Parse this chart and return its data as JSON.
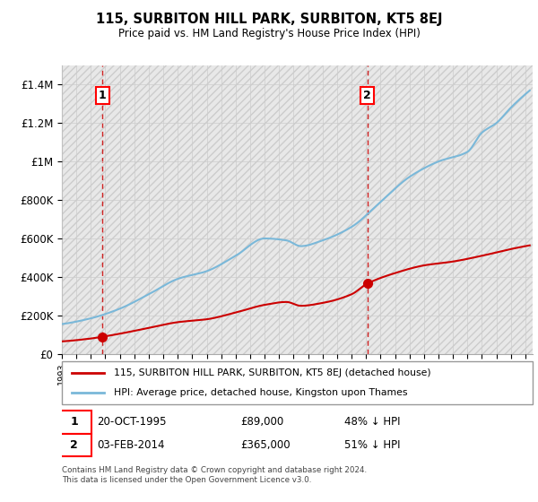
{
  "title": "115, SURBITON HILL PARK, SURBITON, KT5 8EJ",
  "subtitle": "Price paid vs. HM Land Registry's House Price Index (HPI)",
  "ylabel_ticks": [
    "£0",
    "£200K",
    "£400K",
    "£600K",
    "£800K",
    "£1M",
    "£1.2M",
    "£1.4M"
  ],
  "ylim": [
    0,
    1500000
  ],
  "xlim_start": 1993.0,
  "xlim_end": 2025.5,
  "hpi_color": "#7ab8d9",
  "price_color": "#cc0000",
  "marker1_x": 1995.8,
  "marker1_y": 89000,
  "marker2_x": 2014.08,
  "marker2_y": 365000,
  "legend_line1": "115, SURBITON HILL PARK, SURBITON, KT5 8EJ (detached house)",
  "legend_line2": "HPI: Average price, detached house, Kingston upon Thames",
  "footer": "Contains HM Land Registry data © Crown copyright and database right 2024.\nThis data is licensed under the Open Government Licence v3.0.",
  "grid_color": "#cccccc",
  "hatch_color": "#e8e8e8",
  "hpi_knots_x": [
    1993,
    1995,
    1997,
    1999,
    2001,
    2003,
    2005,
    2007,
    2008.5,
    2009.5,
    2011,
    2013,
    2015,
    2017,
    2019,
    2021,
    2022,
    2023,
    2024,
    2025
  ],
  "hpi_knots_y": [
    155000,
    185000,
    235000,
    310000,
    390000,
    430000,
    510000,
    600000,
    590000,
    560000,
    590000,
    660000,
    790000,
    920000,
    1000000,
    1050000,
    1150000,
    1200000,
    1280000,
    1350000
  ],
  "price_knots_x": [
    1993,
    1995,
    1995.8,
    1997,
    1999,
    2001,
    2003,
    2005,
    2007,
    2008.5,
    2009.5,
    2011,
    2013,
    2014.08,
    2016,
    2018,
    2020,
    2022,
    2024,
    2025
  ],
  "price_knots_y": [
    65000,
    80000,
    89000,
    105000,
    135000,
    165000,
    180000,
    215000,
    255000,
    270000,
    250000,
    265000,
    310000,
    365000,
    420000,
    460000,
    480000,
    510000,
    545000,
    560000
  ]
}
